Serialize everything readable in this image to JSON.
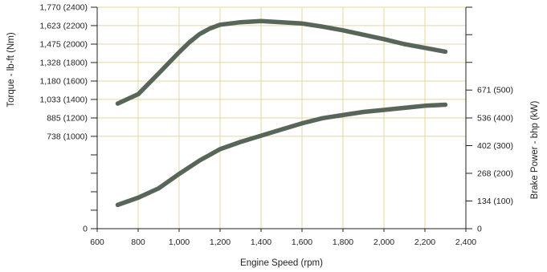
{
  "chart_data": {
    "type": "line",
    "title": "",
    "xlabel": "Engine Speed (rpm)",
    "ylabel_left": "Torque - lb-ft (Nm)",
    "ylabel_right": "Brake Power - bhp (kW)",
    "xlim": [
      600,
      2400
    ],
    "x_ticks": [
      {
        "value": 600,
        "label": "600"
      },
      {
        "value": 800,
        "label": "800"
      },
      {
        "value": 1000,
        "label": "1,000"
      },
      {
        "value": 1200,
        "label": "1,200"
      },
      {
        "value": 1400,
        "label": "1,400"
      },
      {
        "value": 1600,
        "label": "1,600"
      },
      {
        "value": 1800,
        "label": "1,800"
      },
      {
        "value": 2000,
        "label": "2,000"
      },
      {
        "value": 2200,
        "label": "2,200"
      },
      {
        "value": 2400,
        "label": "2,400"
      }
    ],
    "left_axis": {
      "unit_lim_lbft": [
        0,
        1770
      ],
      "ticks": [
        {
          "value": 0,
          "label": "0"
        },
        {
          "value": 738,
          "label": "738 (1000)"
        },
        {
          "value": 885,
          "label": "885 (1200)"
        },
        {
          "value": 1033,
          "label": "1,033 (1400)"
        },
        {
          "value": 1180,
          "label": "1,180 (1600)"
        },
        {
          "value": 1328,
          "label": "1,328 (1800)"
        },
        {
          "value": 1475,
          "label": "1,475 (2000)"
        },
        {
          "value": 1623,
          "label": "1,623 (2200)"
        },
        {
          "value": 1770,
          "label": "1,770 (2400)"
        }
      ],
      "minor_ticks": [
        148,
        295,
        443,
        590
      ]
    },
    "right_axis": {
      "unit_lim_bhp": [
        0,
        1072
      ],
      "ticks": [
        {
          "value": 0,
          "label": "0"
        },
        {
          "value": 134,
          "label": "134 (100)"
        },
        {
          "value": 268,
          "label": "268 (200)"
        },
        {
          "value": 402,
          "label": "402 (300)"
        },
        {
          "value": 536,
          "label": "536 (400)"
        },
        {
          "value": 671,
          "label": "671 (500)"
        }
      ],
      "minor_ticks": [
        805,
        939,
        1072
      ]
    },
    "grid": true,
    "series": [
      {
        "axis": "left",
        "x": [
          700,
          800,
          900,
          1000,
          1050,
          1100,
          1150,
          1200,
          1300,
          1400,
          1500,
          1600,
          1700,
          1800,
          1900,
          2000,
          2100,
          2200,
          2300
        ],
        "y": [
          1000,
          1075,
          1240,
          1410,
          1490,
          1555,
          1600,
          1630,
          1650,
          1660,
          1650,
          1640,
          1615,
          1585,
          1550,
          1515,
          1475,
          1445,
          1415
        ]
      },
      {
        "axis": "right",
        "x": [
          700,
          800,
          900,
          1000,
          1100,
          1200,
          1300,
          1400,
          1500,
          1600,
          1700,
          1800,
          1900,
          2000,
          2100,
          2200,
          2300
        ],
        "y": [
          115,
          150,
          195,
          265,
          330,
          385,
          420,
          450,
          480,
          510,
          535,
          550,
          565,
          575,
          585,
          595,
          600
        ]
      }
    ],
    "colors": {
      "line": "#58665a",
      "grid": "#e3d7a1",
      "axis": "#222222"
    }
  }
}
